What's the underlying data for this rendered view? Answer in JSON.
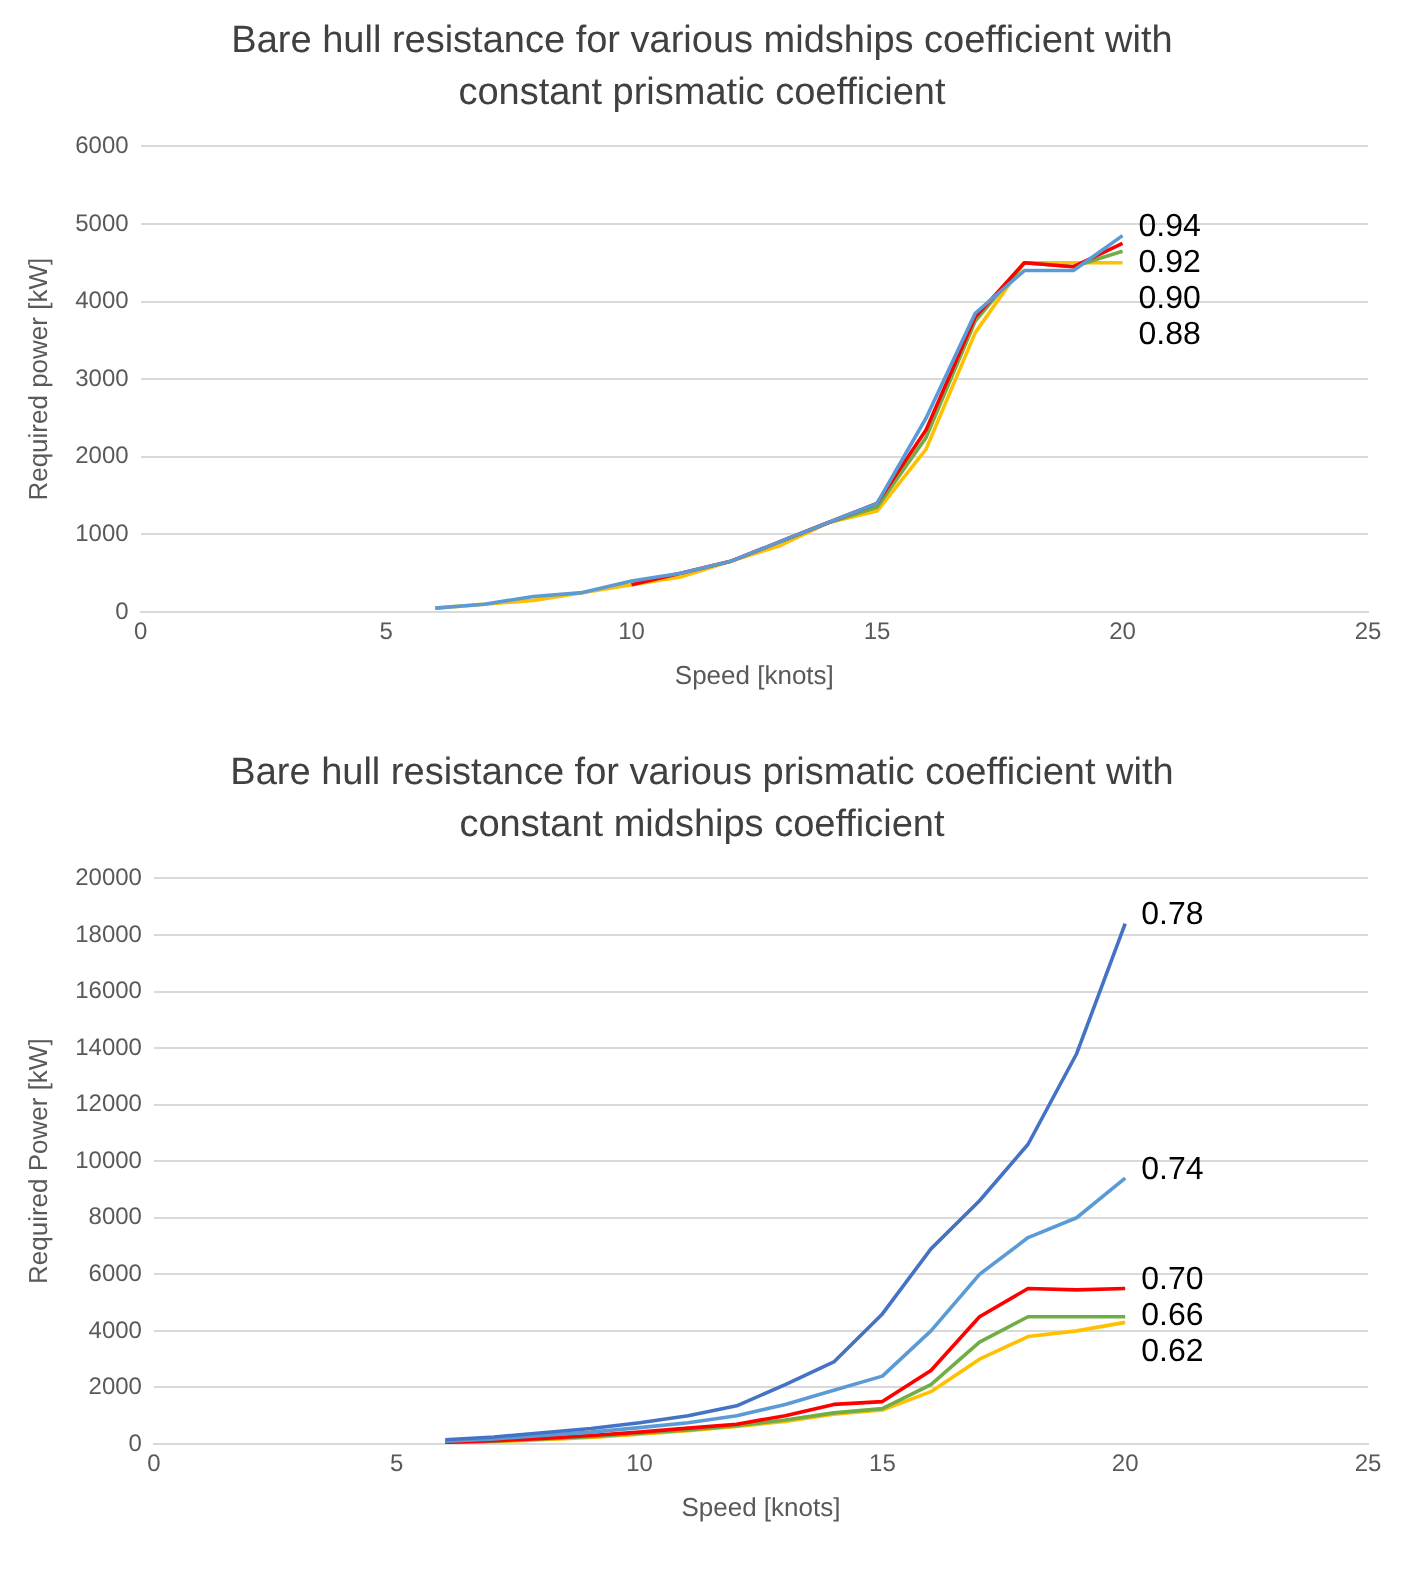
{
  "chart_data": [
    {
      "type": "line",
      "title": "Bare hull resistance for various midships coefficient with constant prismatic coefficient",
      "xlabel": "Speed [knots]",
      "ylabel": "Required power [kW]",
      "x": [
        6,
        7,
        8,
        9,
        10,
        11,
        12,
        13,
        14,
        15,
        16,
        17,
        18,
        19,
        20
      ],
      "xlim": [
        0,
        25
      ],
      "xticks": [
        0,
        5,
        10,
        15,
        20,
        25
      ],
      "ylim": [
        0,
        6000
      ],
      "yticks": [
        0,
        1000,
        2000,
        3000,
        4000,
        5000,
        6000
      ],
      "grid": "y",
      "legend": false,
      "marker": "none",
      "series": [
        {
          "name": "0.94",
          "color": "#5b9bd5",
          "values": [
            50,
            100,
            200,
            250,
            400,
            500,
            650,
            900,
            1150,
            1400,
            2500,
            3850,
            4400,
            4400,
            4850
          ]
        },
        {
          "name": "0.92",
          "color": "#ff0000",
          "values": [
            null,
            null,
            null,
            null,
            350,
            500,
            650,
            900,
            1150,
            1400,
            2350,
            3800,
            4500,
            4450,
            4750
          ]
        },
        {
          "name": "0.90",
          "color": "#70ad47",
          "values": [
            null,
            null,
            null,
            null,
            null,
            null,
            null,
            900,
            1150,
            1350,
            2250,
            3750,
            4500,
            4450,
            4650
          ]
        },
        {
          "name": "0.88",
          "color": "#ffc000",
          "values": [
            50,
            100,
            150,
            250,
            350,
            450,
            650,
            850,
            1150,
            1300,
            2100,
            3600,
            4500,
            4500,
            4500
          ]
        }
      ]
    },
    {
      "type": "line",
      "title": "Bare hull resistance for various prismatic coefficient with constant midships coefficient",
      "xlabel": "Speed [knots]",
      "ylabel": "Required Power [kW]",
      "x": [
        6,
        7,
        8,
        9,
        10,
        11,
        12,
        13,
        14,
        15,
        16,
        17,
        18,
        19,
        20
      ],
      "xlim": [
        0,
        25
      ],
      "xticks": [
        0,
        5,
        10,
        15,
        20,
        25
      ],
      "ylim": [
        0,
        20000
      ],
      "yticks": [
        0,
        2000,
        4000,
        6000,
        8000,
        10000,
        12000,
        14000,
        16000,
        18000,
        20000
      ],
      "grid": "y",
      "legend": false,
      "marker": "none",
      "series": [
        {
          "name": "0.78",
          "color": "#4472c4",
          "values": [
            150,
            250,
            400,
            550,
            750,
            1000,
            1350,
            2100,
            2900,
            4600,
            6900,
            8600,
            10600,
            13800,
            18400
          ]
        },
        {
          "name": "0.74",
          "color": "#5b9bd5",
          "values": [
            100,
            180,
            300,
            420,
            580,
            750,
            1000,
            1400,
            1900,
            2400,
            4000,
            6000,
            7300,
            8000,
            9400
          ]
        },
        {
          "name": "0.70",
          "color": "#ff0000",
          "values": [
            60,
            120,
            200,
            300,
            420,
            560,
            700,
            1000,
            1400,
            1500,
            2600,
            4500,
            5500,
            5450,
            5500
          ]
        },
        {
          "name": "0.66",
          "color": "#70ad47",
          "values": [
            50,
            100,
            180,
            260,
            380,
            500,
            650,
            850,
            1100,
            1250,
            2100,
            3600,
            4500,
            4500,
            4500
          ]
        },
        {
          "name": "0.62",
          "color": "#ffc000",
          "values": [
            40,
            80,
            150,
            230,
            350,
            470,
            620,
            800,
            1050,
            1200,
            1850,
            3000,
            3800,
            4000,
            4300
          ]
        }
      ]
    }
  ]
}
